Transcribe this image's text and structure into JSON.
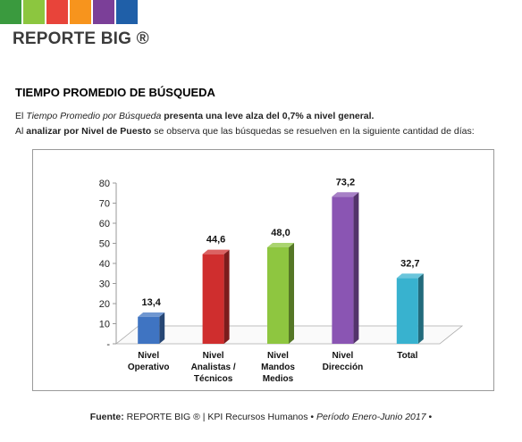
{
  "header": {
    "brand": "REPORTE BIG ®",
    "stripe_colors": [
      "#3a9a3e",
      "#8cc63f",
      "#e8443a",
      "#f7941d",
      "#7b3f98",
      "#1f5fa8"
    ]
  },
  "section": {
    "title": "TIEMPO PROMEDIO DE BÚSQUEDA",
    "line1": {
      "a": "El ",
      "b": "Tiempo Promedio por Búsqueda",
      "c": " presenta una leve alza del 0,7% a nivel general."
    },
    "line2": {
      "a": "Al ",
      "b": "analizar por Nivel de Puesto",
      "c": " se observa que las búsquedas se resuelven en la siguiente cantidad de días:"
    }
  },
  "chart_data": {
    "type": "bar",
    "categories": [
      [
        "Nivel",
        "Operativo"
      ],
      [
        "Nivel",
        "Analistas /",
        "Técnicos"
      ],
      [
        "Nivel",
        "Mandos",
        "Medios"
      ],
      [
        "Nivel",
        "Dirección"
      ],
      [
        "Total"
      ]
    ],
    "values": [
      13.4,
      44.6,
      48.0,
      73.2,
      32.7
    ],
    "value_labels": [
      "13,4",
      "44,6",
      "48,0",
      "73,2",
      "32,7"
    ],
    "colors": [
      "#3f74c2",
      "#cf2e2e",
      "#8ec640",
      "#8a55b3",
      "#38b2cf"
    ],
    "y_ticks": [
      "-",
      "10",
      "20",
      "30",
      "40",
      "50",
      "60",
      "70",
      "80"
    ],
    "ylim": [
      0,
      80
    ],
    "grid": false
  },
  "footer": {
    "label": "Fuente:",
    "text": " REPORTE BIG ® | KPI Recursos Humanos ",
    "bullet1": "•",
    "period": " Período Enero-Junio 2017 ",
    "bullet2": "•"
  }
}
